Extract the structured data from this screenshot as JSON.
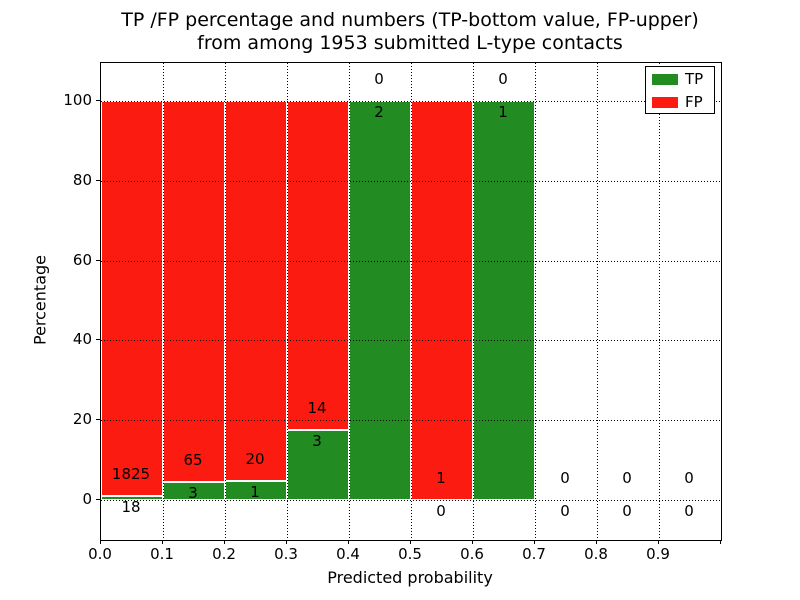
{
  "figure": {
    "title_line1": "TP /FP percentage and numbers (TP-bottom value, FP-upper)",
    "title_line2": "from among 1953 submitted L-type contacts",
    "xlabel": "Predicted probability",
    "ylabel": "Percentage"
  },
  "legend": {
    "items": [
      {
        "label": "TP",
        "color": "#228b22"
      },
      {
        "label": "FP",
        "color": "#fb1b10"
      }
    ]
  },
  "chart_data": {
    "type": "bar",
    "stacked": true,
    "normalized": "each bin scaled to 100%",
    "title": "TP /FP percentage and numbers (TP-bottom value, FP-upper) from among 1953 submitted L-type contacts",
    "xlabel": "Predicted probability",
    "ylabel": "Percentage",
    "x_tick_labels": [
      "0.0",
      "0.1",
      "0.2",
      "0.3",
      "0.4",
      "0.5",
      "0.6",
      "0.7",
      "0.8",
      "0.9"
    ],
    "y_ticks": [
      0,
      20,
      40,
      60,
      80,
      100
    ],
    "xlim": [
      0.0,
      1.0
    ],
    "ylim": [
      -10,
      110
    ],
    "grid": true,
    "grid_style": "dotted",
    "legend_position": "upper right",
    "bin_width": 0.1,
    "total_contacts": 1953,
    "label_convention": "TP count below boundary, FP count above boundary",
    "bins": [
      {
        "x_start": 0.0,
        "x_end": 0.1,
        "tp": 18,
        "fp": 1825,
        "tp_percent": 0.98,
        "fp_percent": 99.02
      },
      {
        "x_start": 0.1,
        "x_end": 0.2,
        "tp": 3,
        "fp": 65,
        "tp_percent": 4.41,
        "fp_percent": 95.59
      },
      {
        "x_start": 0.2,
        "x_end": 0.3,
        "tp": 1,
        "fp": 20,
        "tp_percent": 4.76,
        "fp_percent": 95.24
      },
      {
        "x_start": 0.3,
        "x_end": 0.4,
        "tp": 3,
        "fp": 14,
        "tp_percent": 17.65,
        "fp_percent": 82.35
      },
      {
        "x_start": 0.4,
        "x_end": 0.5,
        "tp": 2,
        "fp": 0,
        "tp_percent": 100.0,
        "fp_percent": 0.0
      },
      {
        "x_start": 0.5,
        "x_end": 0.6,
        "tp": 0,
        "fp": 1,
        "tp_percent": 0.0,
        "fp_percent": 100.0
      },
      {
        "x_start": 0.6,
        "x_end": 0.7,
        "tp": 1,
        "fp": 0,
        "tp_percent": 100.0,
        "fp_percent": 0.0
      },
      {
        "x_start": 0.7,
        "x_end": 0.8,
        "tp": 0,
        "fp": 0,
        "tp_percent": null,
        "fp_percent": null
      },
      {
        "x_start": 0.8,
        "x_end": 0.9,
        "tp": 0,
        "fp": 0,
        "tp_percent": null,
        "fp_percent": null
      },
      {
        "x_start": 0.9,
        "x_end": 1.0,
        "tp": 0,
        "fp": 0,
        "tp_percent": null,
        "fp_percent": null
      }
    ],
    "series": [
      {
        "name": "TP",
        "color": "#228b22",
        "values": [
          18,
          3,
          1,
          3,
          2,
          0,
          1,
          0,
          0,
          0
        ]
      },
      {
        "name": "FP",
        "color": "#fb1b10",
        "values": [
          1825,
          65,
          20,
          14,
          0,
          1,
          0,
          0,
          0,
          0
        ]
      }
    ]
  }
}
